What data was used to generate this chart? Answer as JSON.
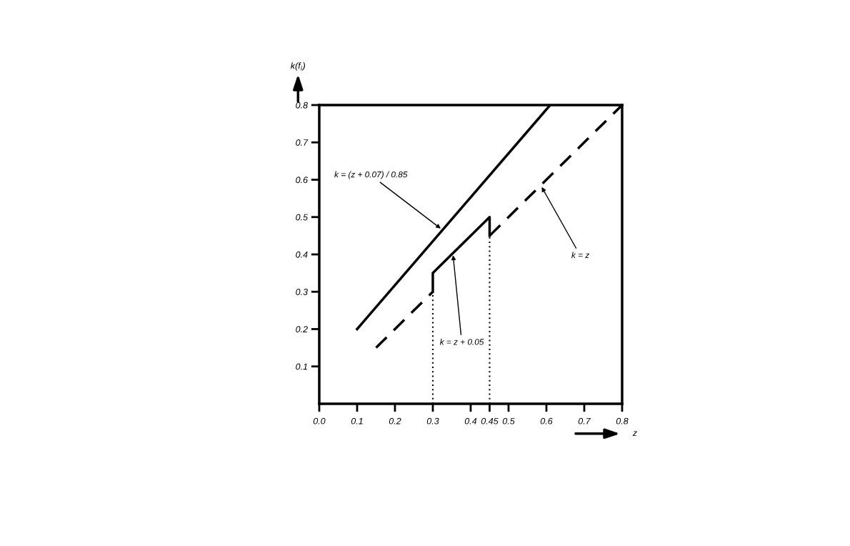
{
  "chart_data": {
    "type": "line",
    "xlabel": "z",
    "ylabel": "k(f$_{i}$)",
    "xlim": [
      0,
      0.8
    ],
    "ylim": [
      0,
      0.8
    ],
    "xticks": [
      {
        "value": 0,
        "label": "0.0"
      },
      0.1,
      0.2,
      0.3,
      0.4,
      {
        "value": 0.45,
        "label": "0.45"
      },
      0.5,
      0.6,
      0.7,
      0.8
    ],
    "yticks": [
      0.1,
      0.2,
      0.3,
      0.4,
      0.5,
      0.6,
      0.7,
      0.8
    ],
    "grid": false,
    "legend": false,
    "marker": "none",
    "series": [
      {
        "color": "#000000",
        "line_style": "solid",
        "x": [
          0.1,
          0.61
        ],
        "values": [
          0.2,
          0.8
        ]
      },
      {
        "color": "#000000",
        "line_style": "dashed",
        "x": [
          0.15,
          0.3,
          0.375,
          0.45,
          0.8
        ],
        "values": [
          0.15,
          0.3,
          null,
          0.45,
          0.8
        ]
      },
      {
        "color": "#000000",
        "line_style": "solid",
        "x": [
          0.3,
          0.3,
          0.45,
          0.45
        ],
        "values": [
          0.3,
          0.35,
          0.5,
          0.45
        ]
      },
      {
        "color": "#000000",
        "line_style": "dotted",
        "x": [
          0.3,
          0.3
        ],
        "values": [
          0,
          0.3
        ]
      },
      {
        "color": "#000000",
        "line_style": "dotted",
        "x": [
          0.45,
          0.45
        ],
        "values": [
          0,
          0.45
        ]
      }
    ],
    "annotations": [
      {
        "text": "k = (z + 0.07) / 0.85",
        "x": 0.325,
        "y": 0.466
      },
      {
        "text": "k = z + 0.05",
        "x": 0.353,
        "y": 0.403
      },
      {
        "text": "k = z",
        "x": 0.585,
        "y": 0.585
      }
    ]
  }
}
